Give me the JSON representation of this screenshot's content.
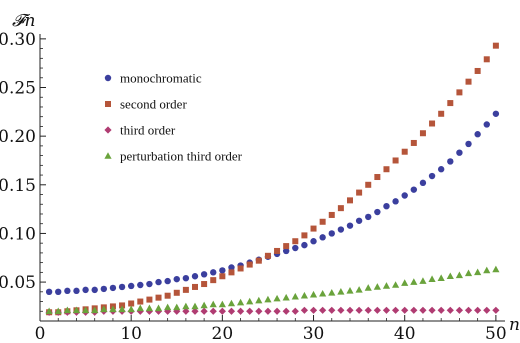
{
  "chart_data": {
    "type": "scatter",
    "xlabel": "n",
    "ylabel": "𝓕n",
    "xlim": [
      0,
      51
    ],
    "ylim": [
      0.01,
      0.305
    ],
    "x_ticks": [
      "0",
      "10",
      "20",
      "30",
      "40",
      "50"
    ],
    "x_tick_values": [
      0,
      10,
      20,
      30,
      40,
      50
    ],
    "y_ticks": [
      "0.05",
      "0.10",
      "0.15",
      "0.20",
      "0.25",
      "0.30"
    ],
    "y_tick_values": [
      0.05,
      0.1,
      0.15,
      0.2,
      0.25,
      0.3
    ],
    "grid": false,
    "legend_position": "top-left",
    "x": [
      1,
      2,
      3,
      4,
      5,
      6,
      7,
      8,
      9,
      10,
      11,
      12,
      13,
      14,
      15,
      16,
      17,
      18,
      19,
      20,
      21,
      22,
      23,
      24,
      25,
      26,
      27,
      28,
      29,
      30,
      31,
      32,
      33,
      34,
      35,
      36,
      37,
      38,
      39,
      40,
      41,
      42,
      43,
      44,
      45,
      46,
      47,
      48,
      49,
      50
    ],
    "series": [
      {
        "name": "monochromatic",
        "marker": "circle",
        "color": "#3b3f9e",
        "values": [
          0.04,
          0.04,
          0.041,
          0.041,
          0.042,
          0.042,
          0.043,
          0.044,
          0.045,
          0.046,
          0.047,
          0.048,
          0.05,
          0.051,
          0.053,
          0.054,
          0.056,
          0.058,
          0.06,
          0.062,
          0.065,
          0.067,
          0.07,
          0.073,
          0.076,
          0.079,
          0.082,
          0.085,
          0.088,
          0.092,
          0.096,
          0.1,
          0.104,
          0.108,
          0.113,
          0.117,
          0.122,
          0.128,
          0.133,
          0.139,
          0.145,
          0.152,
          0.159,
          0.166,
          0.174,
          0.183,
          0.192,
          0.202,
          0.212,
          0.223
        ]
      },
      {
        "name": "second order",
        "marker": "square",
        "color": "#b5553a",
        "values": [
          0.019,
          0.019,
          0.02,
          0.021,
          0.022,
          0.023,
          0.024,
          0.025,
          0.026,
          0.028,
          0.03,
          0.032,
          0.034,
          0.036,
          0.039,
          0.042,
          0.045,
          0.048,
          0.052,
          0.056,
          0.06,
          0.064,
          0.068,
          0.072,
          0.077,
          0.082,
          0.087,
          0.092,
          0.098,
          0.105,
          0.112,
          0.119,
          0.126,
          0.134,
          0.142,
          0.15,
          0.158,
          0.166,
          0.175,
          0.184,
          0.193,
          0.203,
          0.213,
          0.223,
          0.234,
          0.245,
          0.256,
          0.267,
          0.279,
          0.293
        ]
      },
      {
        "name": "third order",
        "marker": "diamond",
        "color": "#b03c72",
        "values": [
          0.019,
          0.019,
          0.019,
          0.019,
          0.019,
          0.019,
          0.02,
          0.02,
          0.02,
          0.02,
          0.02,
          0.02,
          0.02,
          0.02,
          0.02,
          0.02,
          0.02,
          0.02,
          0.02,
          0.02,
          0.02,
          0.02,
          0.02,
          0.02,
          0.02,
          0.02,
          0.02,
          0.02,
          0.021,
          0.021,
          0.021,
          0.021,
          0.021,
          0.021,
          0.021,
          0.021,
          0.021,
          0.021,
          0.021,
          0.021,
          0.021,
          0.021,
          0.021,
          0.021,
          0.021,
          0.021,
          0.021,
          0.021,
          0.021,
          0.021
        ]
      },
      {
        "name": "perturbation third order",
        "marker": "triangle",
        "color": "#6aa33c",
        "values": [
          0.02,
          0.02,
          0.021,
          0.021,
          0.021,
          0.021,
          0.022,
          0.022,
          0.022,
          0.022,
          0.023,
          0.023,
          0.023,
          0.024,
          0.024,
          0.025,
          0.025,
          0.026,
          0.027,
          0.027,
          0.028,
          0.029,
          0.03,
          0.031,
          0.032,
          0.033,
          0.034,
          0.035,
          0.036,
          0.037,
          0.038,
          0.039,
          0.04,
          0.041,
          0.042,
          0.044,
          0.045,
          0.046,
          0.047,
          0.049,
          0.05,
          0.051,
          0.053,
          0.054,
          0.056,
          0.057,
          0.059,
          0.06,
          0.062,
          0.063
        ]
      }
    ]
  }
}
